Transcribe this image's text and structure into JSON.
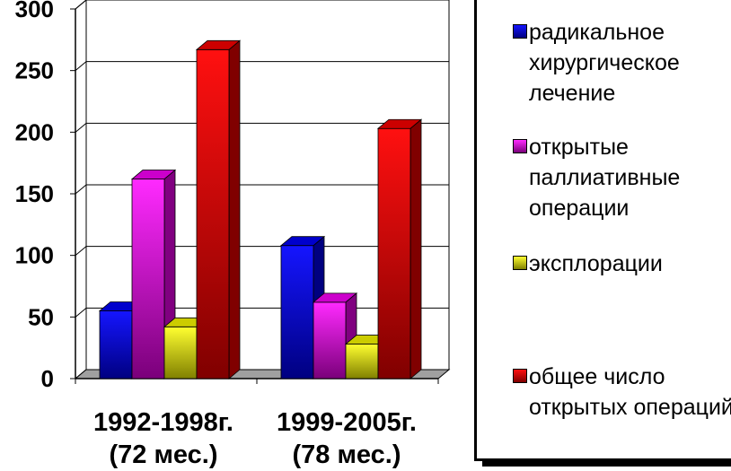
{
  "chart_data": {
    "type": "bar",
    "categories": [
      {
        "line1": "1992-1998г.",
        "line2": "(72 мес.)"
      },
      {
        "line1": "1999-2005г.",
        "line2": "(78 мес.)"
      }
    ],
    "series": [
      {
        "name": "радикальное хирургическое лечение",
        "color": "#0000ff",
        "values": [
          55,
          108
        ]
      },
      {
        "name": "открытые паллиативные операции",
        "color": "#ff00ff",
        "values": [
          162,
          62
        ]
      },
      {
        "name": "эксплорации",
        "color": "#ffff00",
        "values": [
          42,
          28
        ]
      },
      {
        "name": "общее число открытых операций",
        "color": "#ff0000",
        "values": [
          267,
          203
        ]
      }
    ],
    "ylim": [
      0,
      300
    ],
    "yticks": [
      "0",
      "50",
      "100",
      "150",
      "200",
      "250",
      "300"
    ],
    "grid": true,
    "legend_position": "right"
  }
}
